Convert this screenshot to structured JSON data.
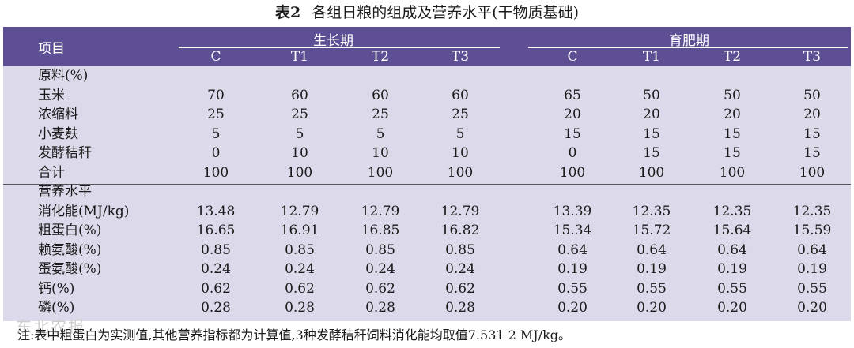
{
  "caption": {
    "number": "表2",
    "text": "各组日粮的组成及营养水平(干物质基础)"
  },
  "header": {
    "item_label": "项目",
    "groups": [
      "生长期",
      "育肥期"
    ],
    "columns": [
      "C",
      "T1",
      "T2",
      "T3",
      "C",
      "T1",
      "T2",
      "T3"
    ]
  },
  "sections": [
    {
      "title": "原料(%)",
      "rows": [
        {
          "label": "玉米",
          "values": [
            "70",
            "60",
            "60",
            "60",
            "65",
            "50",
            "50",
            "50"
          ]
        },
        {
          "label": "浓缩料",
          "values": [
            "25",
            "25",
            "25",
            "25",
            "20",
            "20",
            "20",
            "20"
          ]
        },
        {
          "label": "小麦麸",
          "values": [
            "5",
            "5",
            "5",
            "5",
            "15",
            "15",
            "15",
            "15"
          ]
        },
        {
          "label": "发酵秸秆",
          "values": [
            "0",
            "10",
            "10",
            "10",
            "0",
            "15",
            "15",
            "15"
          ]
        },
        {
          "label": "合计",
          "values": [
            "100",
            "100",
            "100",
            "100",
            "100",
            "100",
            "100",
            "100"
          ]
        }
      ]
    },
    {
      "title": "营养水平",
      "rows": [
        {
          "label": "消化能(MJ/kg)",
          "values": [
            "13.48",
            "12.79",
            "12.79",
            "12.79",
            "13.39",
            "12.35",
            "12.35",
            "12.35"
          ]
        },
        {
          "label": "粗蛋白(%)",
          "values": [
            "16.65",
            "16.91",
            "16.85",
            "16.82",
            "15.34",
            "15.72",
            "15.64",
            "15.59"
          ]
        },
        {
          "label": "赖氨酸(%)",
          "values": [
            "0.85",
            "0.85",
            "0.85",
            "0.85",
            "0.64",
            "0.64",
            "0.64",
            "0.64"
          ]
        },
        {
          "label": "蛋氨酸(%)",
          "values": [
            "0.24",
            "0.24",
            "0.24",
            "0.24",
            "0.19",
            "0.19",
            "0.19",
            "0.19"
          ]
        },
        {
          "label": "钙(%)",
          "values": [
            "0.62",
            "0.62",
            "0.62",
            "0.62",
            "0.55",
            "0.55",
            "0.55",
            "0.55"
          ]
        },
        {
          "label": "磷(%)",
          "values": [
            "0.28",
            "0.28",
            "0.28",
            "0.28",
            "0.20",
            "0.20",
            "0.20",
            "0.20"
          ]
        }
      ]
    }
  ],
  "note": "注:表中粗蛋白为实测值,其他营养指标都为计算值,3种发酵秸秆饲料消化能均取值7.531 2 MJ/kg。",
  "watermark": "东北农报"
}
